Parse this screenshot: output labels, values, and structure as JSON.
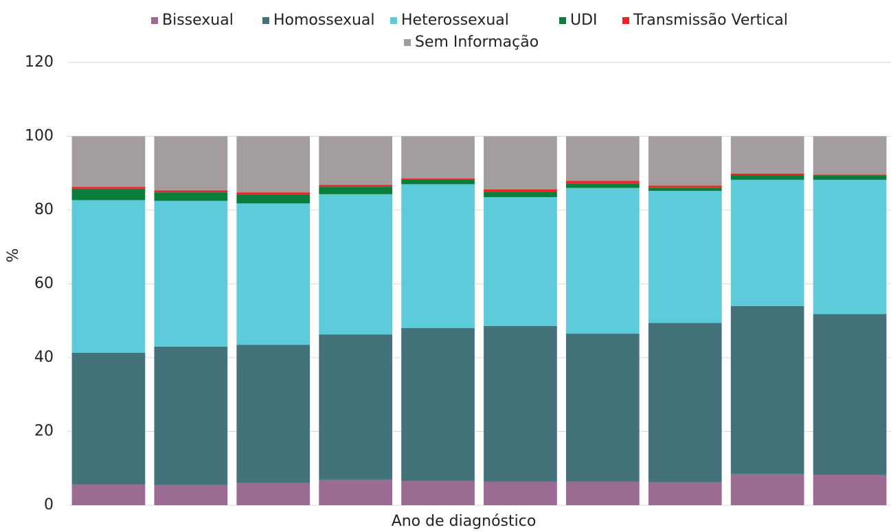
{
  "chart_data": {
    "type": "stacked_bar",
    "categories": [
      null,
      null,
      null,
      null,
      null,
      null,
      null,
      null,
      null,
      null
    ],
    "series": [
      {
        "name": "Bissexual",
        "color": "#9b6b92",
        "values": [
          5.6,
          5.5,
          6.0,
          6.9,
          6.6,
          6.4,
          6.4,
          6.2,
          8.4,
          8.2
        ]
      },
      {
        "name": "Homossexual",
        "color": "#44727a",
        "values": [
          35.7,
          37.5,
          37.5,
          39.4,
          41.4,
          42.2,
          40.1,
          43.2,
          45.6,
          43.6
        ]
      },
      {
        "name": "Heterossexual",
        "color": "#5ecbdb",
        "values": [
          41.4,
          39.5,
          38.3,
          38.0,
          39.0,
          34.9,
          39.5,
          35.8,
          34.2,
          36.4
        ]
      },
      {
        "name": "UDI",
        "color": "#0a7d3a",
        "values": [
          3.1,
          2.3,
          2.4,
          2.0,
          1.2,
          1.5,
          1.2,
          0.8,
          1.2,
          1.1
        ]
      },
      {
        "name": "Transmissão Vertical",
        "color": "#e8252a",
        "values": [
          0.5,
          0.5,
          0.6,
          0.5,
          0.4,
          0.6,
          0.7,
          0.6,
          0.5,
          0.3
        ]
      },
      {
        "name": "Sem Informação",
        "color": "#a39d9d",
        "values": [
          13.7,
          14.7,
          15.2,
          13.2,
          11.4,
          14.4,
          12.1,
          13.4,
          10.1,
          10.4
        ]
      }
    ],
    "x_label": "Ano de diagnóstico",
    "y_label": "%",
    "ylim": [
      0,
      120
    ],
    "yticks": [
      0,
      20,
      40,
      60,
      80,
      100,
      120
    ],
    "grid": true,
    "legend": "top"
  }
}
